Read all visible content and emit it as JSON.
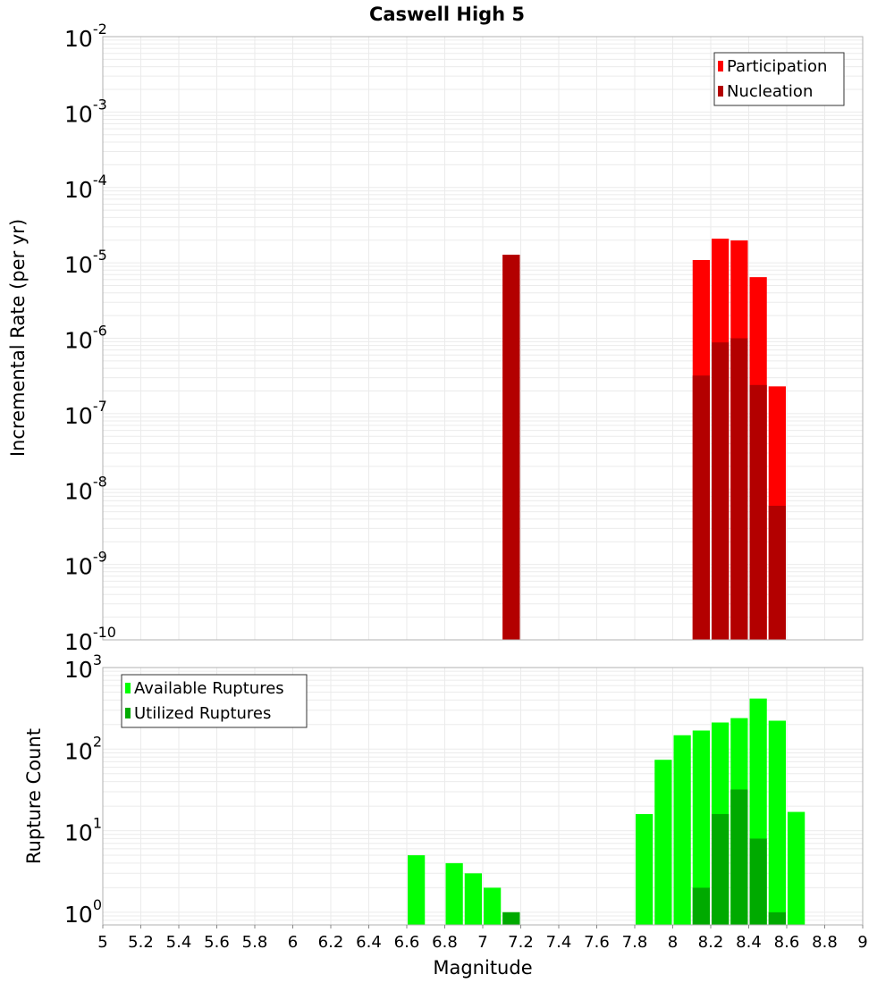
{
  "chart_data": [
    {
      "type": "bar",
      "title": "Caswell High 5",
      "xlabel": "Magnitude",
      "ylabel": "Incremental Rate (per yr)",
      "yscale": "log",
      "ylim": [
        1e-10,
        0.01
      ],
      "xlim": [
        5,
        9
      ],
      "ytick_exponents": [
        "-10",
        "-9",
        "-8",
        "-7",
        "-6",
        "-5",
        "-4",
        "-3",
        "-2"
      ],
      "ytick_base": "10",
      "legend": {
        "position": "top-right",
        "entries": [
          "Participation",
          "Nucleation"
        ]
      },
      "colors": {
        "Participation": "#ff0000",
        "Nucleation": "#b30000"
      },
      "series": [
        {
          "name": "Participation",
          "x": [
            7.15,
            8.15,
            8.25,
            8.35,
            8.45,
            8.55
          ],
          "values": [
            1.28e-05,
            1.09e-05,
            2.09e-05,
            1.98e-05,
            6.46e-06,
            2.3e-07
          ]
        },
        {
          "name": "Nucleation",
          "x": [
            7.15,
            8.15,
            8.25,
            8.35,
            8.45,
            8.55
          ],
          "values": [
            1.28e-05,
            3.2e-07,
            8.8e-07,
            1e-06,
            2.4e-07,
            6e-09
          ]
        }
      ]
    },
    {
      "type": "bar",
      "xlabel": "Magnitude",
      "ylabel": "Rupture Count",
      "yscale": "log",
      "ylim": [
        0.7,
        1000
      ],
      "xlim": [
        5,
        9
      ],
      "ytick_exponents": [
        "0",
        "1",
        "2",
        "3"
      ],
      "ytick_base": "10",
      "xticks": [
        "5",
        "5.2",
        "5.4",
        "5.6",
        "5.8",
        "6",
        "6.2",
        "6.4",
        "6.6",
        "6.8",
        "7",
        "7.2",
        "7.4",
        "7.6",
        "7.8",
        "8",
        "8.2",
        "8.4",
        "8.6",
        "8.8",
        "9"
      ],
      "legend": {
        "position": "top-left",
        "entries": [
          "Available Ruptures",
          "Utilized Ruptures"
        ]
      },
      "colors": {
        "Available Ruptures": "#00ff00",
        "Utilized Ruptures": "#00aa00"
      },
      "series": [
        {
          "name": "Available Ruptures",
          "x": [
            6.65,
            6.85,
            6.95,
            7.05,
            7.15,
            7.85,
            7.95,
            8.05,
            8.15,
            8.25,
            8.35,
            8.45,
            8.55,
            8.65
          ],
          "values": [
            5,
            4,
            3,
            2,
            1,
            16,
            74,
            148,
            169,
            212,
            240,
            417,
            223,
            17
          ]
        },
        {
          "name": "Utilized Ruptures",
          "x": [
            7.15,
            8.15,
            8.25,
            8.35,
            8.45,
            8.55
          ],
          "values": [
            1,
            2,
            16,
            32,
            8,
            1
          ]
        }
      ]
    }
  ]
}
